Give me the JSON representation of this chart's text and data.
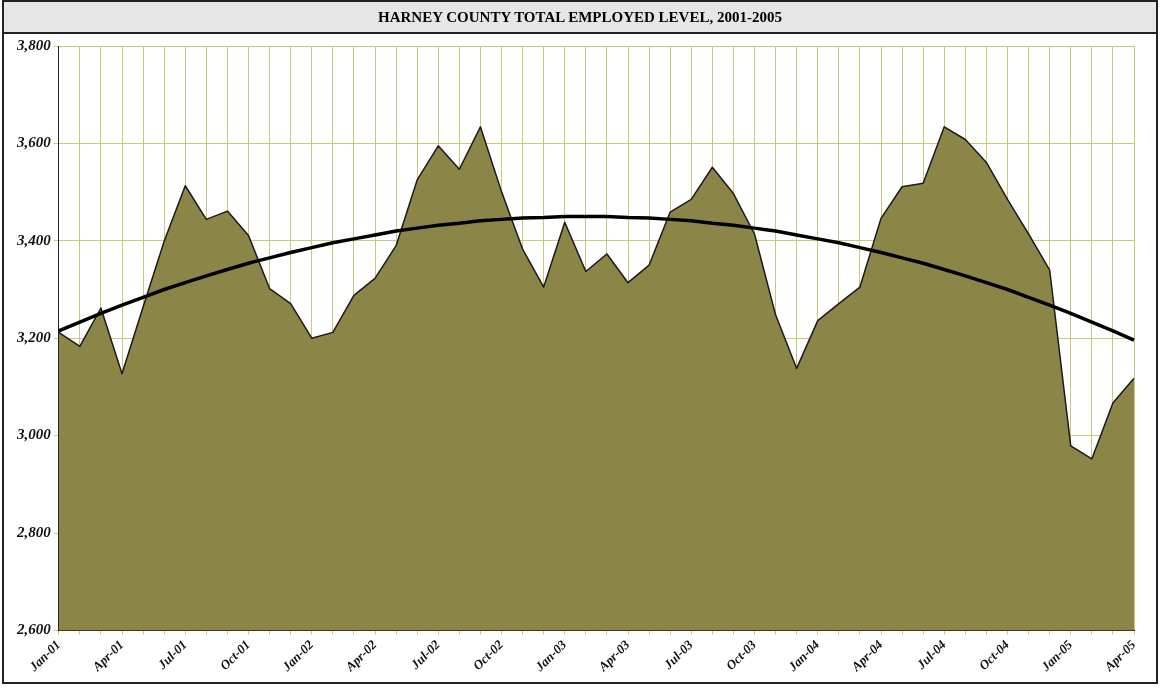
{
  "chart_data": {
    "type": "area",
    "title": "HARNEY COUNTY TOTAL EMPLOYED LEVEL, 2001-2005",
    "categories": [
      "Jan-01",
      null,
      null,
      "Apr-01",
      null,
      null,
      "Jul-01",
      null,
      null,
      "Oct-01",
      null,
      null,
      "Jan-02",
      null,
      null,
      "Apr-02",
      null,
      null,
      "Jul-02",
      null,
      null,
      "Oct-02",
      null,
      null,
      "Jan-03",
      null,
      null,
      "Apr-03",
      null,
      null,
      "Jul-03",
      null,
      null,
      "Oct-03",
      null,
      null,
      "Jan-04",
      null,
      null,
      "Apr-04",
      null,
      null,
      "Jul-04",
      null,
      null,
      "Oct-04",
      null,
      null,
      "Jan-05",
      null,
      null,
      "Apr-05"
    ],
    "series": [
      {
        "color": "#8b8647",
        "values": [
          3212,
          3183,
          3262,
          3127,
          3264,
          3399,
          3513,
          3444,
          3461,
          3411,
          3302,
          3271,
          3200,
          3212,
          3288,
          3323,
          3390,
          3525,
          3595,
          3547,
          3634,
          3501,
          3383,
          3305,
          3438,
          3337,
          3373,
          3314,
          3350,
          3459,
          3485,
          3551,
          3497,
          3414,
          3248,
          3138,
          3236,
          3271,
          3305,
          3446,
          3511,
          3518,
          3634,
          3608,
          3561,
          3485,
          3414,
          3340,
          2979,
          2952,
          3067,
          3118
        ]
      },
      {
        "type": "line",
        "color": "#000000",
        "values": [
          3215,
          3233,
          3251,
          3268,
          3284,
          3300,
          3314,
          3328,
          3341,
          3354,
          3365,
          3376,
          3386,
          3396,
          3404,
          3412,
          3420,
          3426,
          3432,
          3436,
          3441,
          3444,
          3447,
          3448,
          3450,
          3450,
          3450,
          3448,
          3447,
          3444,
          3441,
          3436,
          3432,
          3426,
          3420,
          3412,
          3404,
          3396,
          3386,
          3376,
          3365,
          3354,
          3341,
          3328,
          3314,
          3300,
          3284,
          3268,
          3251,
          3233,
          3215,
          3196
        ]
      }
    ],
    "ylim": [
      2600,
      3800
    ],
    "yticks": [
      {
        "value": 2600,
        "label": "2,600"
      },
      {
        "value": 2800,
        "label": "2,800"
      },
      {
        "value": 3000,
        "label": "3,000"
      },
      {
        "value": 3200,
        "label": "3,200"
      },
      {
        "value": 3400,
        "label": "3,400"
      },
      {
        "value": 3600,
        "label": "3,600"
      },
      {
        "value": 3800,
        "label": "3,800"
      }
    ],
    "grid": true,
    "legend": false,
    "marker": "none"
  }
}
